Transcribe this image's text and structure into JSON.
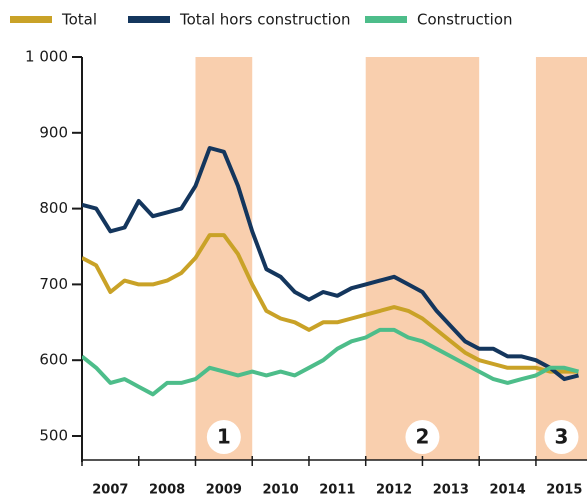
{
  "chart_data": {
    "type": "line",
    "legend": "top",
    "x": [
      2007.0,
      2007.25,
      2007.5,
      2007.75,
      2008.0,
      2008.25,
      2008.5,
      2008.75,
      2009.0,
      2009.25,
      2009.5,
      2009.75,
      2010.0,
      2010.25,
      2010.5,
      2010.75,
      2011.0,
      2011.25,
      2011.5,
      2011.75,
      2012.0,
      2012.25,
      2012.5,
      2012.75,
      2013.0,
      2013.25,
      2013.5,
      2013.75,
      2014.0,
      2014.25,
      2014.5,
      2014.75,
      2015.0,
      2015.25,
      2015.5,
      2015.75
    ],
    "series": [
      {
        "name": "Total",
        "color": "#c9a227",
        "values": [
          735,
          725,
          690,
          705,
          700,
          700,
          705,
          715,
          735,
          765,
          765,
          740,
          700,
          665,
          655,
          650,
          640,
          650,
          650,
          655,
          660,
          665,
          670,
          665,
          655,
          640,
          625,
          610,
          600,
          595,
          590,
          590,
          590,
          585,
          585,
          585
        ]
      },
      {
        "name": "Total hors construction",
        "color": "#14365d",
        "values": [
          805,
          800,
          770,
          775,
          810,
          790,
          795,
          800,
          830,
          880,
          875,
          830,
          770,
          720,
          710,
          690,
          680,
          690,
          685,
          695,
          700,
          705,
          710,
          700,
          690,
          665,
          645,
          625,
          615,
          615,
          605,
          605,
          600,
          590,
          575,
          580
        ]
      },
      {
        "name": "Construction",
        "color": "#4dbd8a",
        "values": [
          605,
          590,
          570,
          575,
          565,
          555,
          570,
          570,
          575,
          590,
          585,
          580,
          585,
          580,
          585,
          580,
          590,
          600,
          615,
          625,
          630,
          640,
          640,
          630,
          625,
          615,
          605,
          595,
          585,
          575,
          570,
          575,
          580,
          590,
          590,
          585
        ]
      }
    ],
    "periods": [
      {
        "start": 2009,
        "end": 2010,
        "label": "1"
      },
      {
        "start": 2012,
        "end": 2014,
        "label": "2"
      },
      {
        "start": 2015,
        "end": 2015.9,
        "label": "3"
      }
    ],
    "period_color": "#f9cfae",
    "xlim": [
      2007,
      2015.9
    ],
    "xticks": [
      2007,
      2008,
      2009,
      2010,
      2011,
      2012,
      2013,
      2014,
      2015
    ],
    "ylim": [
      500,
      1000
    ],
    "yticks": [
      500,
      600,
      700,
      800,
      900,
      {
        "value": 1000,
        "label": "1 000"
      }
    ]
  }
}
